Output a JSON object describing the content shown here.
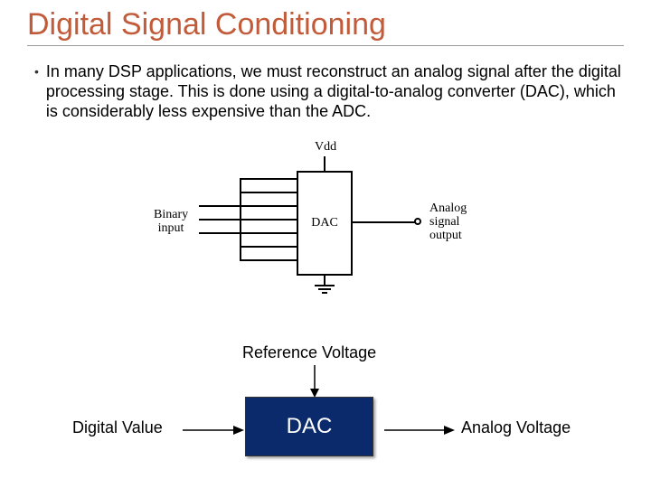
{
  "title": "Digital Signal Conditioning",
  "title_color": "#c15b3a",
  "bullet_text": "In many DSP applications, we must reconstruct an analog signal after the digital processing stage. This is done using a digital-to-analog converter (DAC), which is considerably less expensive than the ADC.",
  "schematic": {
    "vdd_label": "Vdd",
    "dac_label": "DAC",
    "binary_input_label": "Binary\ninput",
    "analog_output_label": "Analog\nsignal\noutput",
    "box_color": "#ffffff",
    "line_color": "#000000",
    "num_input_lines": 7,
    "input_line_top_start": 42,
    "input_line_spacing": 15
  },
  "block_diagram": {
    "ref_voltage_label": "Reference Voltage",
    "digital_value_label": "Digital Value",
    "dac_label": "DAC",
    "analog_voltage_label": "Analog Voltage",
    "block_bg": "#0a2a6c",
    "block_text_color": "#ffffff",
    "arrow_color": "#000000"
  }
}
